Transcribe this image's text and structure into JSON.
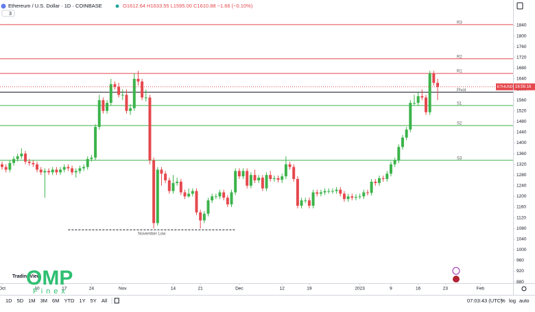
{
  "chart_data": {
    "type": "candlestick",
    "title": "Ethereum / U.S. Dollar · 1D · COINBASE",
    "ohlc_text": "O1612.64 H1633.55 L1595.00 C1610.88 −1.66 (−0.10%)",
    "indicator_count": "3",
    "up_color": "#3bb34a",
    "down_color": "#e5484d",
    "open": [
      1320,
      1310,
      1300,
      1325,
      1340,
      1350,
      1360,
      1330,
      1325,
      1320,
      1300,
      1290,
      1295,
      1290,
      1300,
      1290,
      1300,
      1310,
      1305,
      1290,
      1295,
      1305,
      1310,
      1340,
      1345,
      1460,
      1560,
      1520,
      1550,
      1620,
      1610,
      1580,
      1580,
      1520,
      1530,
      1640,
      1630,
      1570,
      1570,
      1335,
      1100,
      1300,
      1285,
      1260,
      1220,
      1250,
      1255,
      1215,
      1200,
      1210,
      1220,
      1140,
      1110,
      1135,
      1185,
      1200,
      1200,
      1215,
      1195,
      1170,
      1215,
      1295,
      1275,
      1295,
      1240,
      1280,
      1260,
      1270,
      1230,
      1280,
      1265,
      1268,
      1262,
      1275,
      1320,
      1310,
      1265,
      1165,
      1185,
      1185,
      1165,
      1215,
      1210,
      1215,
      1220,
      1220,
      1220,
      1225,
      1210,
      1190,
      1200,
      1195,
      1198,
      1200,
      1215,
      1213,
      1255,
      1250,
      1268,
      1265,
      1285,
      1320,
      1335,
      1385,
      1420,
      1450,
      1550,
      1550,
      1575,
      1570,
      1515,
      1660,
      1625
    ],
    "high": [
      1330,
      1320,
      1335,
      1350,
      1360,
      1380,
      1370,
      1340,
      1335,
      1330,
      1310,
      1305,
      1305,
      1310,
      1310,
      1310,
      1320,
      1320,
      1315,
      1305,
      1315,
      1320,
      1350,
      1355,
      1470,
      1580,
      1570,
      1560,
      1640,
      1630,
      1625,
      1600,
      1600,
      1545,
      1660,
      1670,
      1640,
      1600,
      1580,
      1345,
      1310,
      1310,
      1295,
      1270,
      1280,
      1270,
      1265,
      1225,
      1230,
      1230,
      1230,
      1150,
      1145,
      1195,
      1210,
      1210,
      1225,
      1225,
      1205,
      1225,
      1305,
      1305,
      1305,
      1305,
      1290,
      1300,
      1280,
      1280,
      1290,
      1295,
      1278,
      1278,
      1285,
      1350,
      1330,
      1320,
      1275,
      1195,
      1195,
      1195,
      1225,
      1225,
      1225,
      1230,
      1230,
      1230,
      1235,
      1235,
      1220,
      1210,
      1210,
      1208,
      1210,
      1225,
      1225,
      1265,
      1265,
      1278,
      1278,
      1295,
      1330,
      1345,
      1395,
      1430,
      1460,
      1560,
      1580,
      1590,
      1600,
      1580,
      1670,
      1670,
      1640
    ],
    "low": [
      1300,
      1290,
      1290,
      1315,
      1330,
      1340,
      1320,
      1315,
      1310,
      1290,
      1280,
      1195,
      1280,
      1280,
      1280,
      1280,
      1290,
      1295,
      1280,
      1270,
      1285,
      1295,
      1300,
      1330,
      1335,
      1450,
      1510,
      1510,
      1540,
      1600,
      1570,
      1560,
      1510,
      1505,
      1520,
      1615,
      1560,
      1555,
      1320,
      1080,
      1090,
      1240,
      1250,
      1210,
      1210,
      1240,
      1205,
      1190,
      1195,
      1200,
      1130,
      1080,
      1100,
      1125,
      1175,
      1190,
      1190,
      1185,
      1160,
      1160,
      1205,
      1265,
      1265,
      1230,
      1230,
      1250,
      1250,
      1220,
      1220,
      1255,
      1255,
      1252,
      1250,
      1265,
      1300,
      1255,
      1155,
      1155,
      1175,
      1155,
      1155,
      1200,
      1200,
      1205,
      1210,
      1210,
      1210,
      1200,
      1180,
      1180,
      1185,
      1185,
      1190,
      1190,
      1203,
      1203,
      1240,
      1240,
      1255,
      1255,
      1275,
      1310,
      1325,
      1375,
      1410,
      1440,
      1540,
      1540,
      1560,
      1505,
      1505,
      1615,
      1560
    ],
    "close": [
      1310,
      1300,
      1325,
      1340,
      1350,
      1360,
      1330,
      1325,
      1320,
      1300,
      1290,
      1295,
      1290,
      1300,
      1290,
      1300,
      1310,
      1305,
      1290,
      1295,
      1305,
      1310,
      1340,
      1345,
      1460,
      1560,
      1520,
      1550,
      1620,
      1610,
      1580,
      1580,
      1520,
      1530,
      1640,
      1630,
      1570,
      1570,
      1335,
      1100,
      1300,
      1285,
      1260,
      1220,
      1250,
      1255,
      1215,
      1200,
      1210,
      1220,
      1140,
      1110,
      1135,
      1185,
      1200,
      1200,
      1215,
      1195,
      1170,
      1215,
      1295,
      1275,
      1295,
      1240,
      1280,
      1260,
      1270,
      1230,
      1280,
      1265,
      1268,
      1262,
      1275,
      1320,
      1310,
      1265,
      1165,
      1185,
      1185,
      1165,
      1215,
      1210,
      1215,
      1220,
      1220,
      1220,
      1225,
      1210,
      1190,
      1200,
      1195,
      1198,
      1200,
      1215,
      1213,
      1255,
      1250,
      1268,
      1265,
      1285,
      1320,
      1335,
      1385,
      1420,
      1450,
      1550,
      1550,
      1575,
      1570,
      1515,
      1660,
      1625,
      1610
    ],
    "levels": [
      {
        "name": "R3",
        "value": 1843,
        "color": "#e5484d"
      },
      {
        "name": "R2",
        "value": 1715,
        "color": "#e5484d"
      },
      {
        "name": "R1",
        "value": 1660,
        "color": "#e5484d"
      },
      {
        "name": "Pivot",
        "value": 1590,
        "color": "#131722"
      },
      {
        "name": "S1",
        "value": 1540,
        "color": "#3bb34a"
      },
      {
        "name": "S2",
        "value": 1465,
        "color": "#3bb34a"
      },
      {
        "name": "S3",
        "value": 1335,
        "color": "#3bb34a"
      }
    ],
    "annotation": {
      "text": "November Low",
      "value": 1075,
      "x_start": 17,
      "x_end": 60
    },
    "price_tag": {
      "symbol": "ETHUSD",
      "timer": "16:56:16"
    },
    "xlim": [
      -0.53,
      131.4
    ],
    "ylim": [
      855,
      1935
    ],
    "yticks": [
      880,
      920,
      960,
      1000,
      1040,
      1080,
      1120,
      1160,
      1200,
      1240,
      1280,
      1320,
      1360,
      1400,
      1440,
      1480,
      1520,
      1560,
      1600,
      1640,
      1680,
      1720,
      1760,
      1800,
      1840
    ],
    "xticks": [
      {
        "value": 0,
        "label": "Oct"
      },
      {
        "value": 9,
        "label": "10"
      },
      {
        "value": 16,
        "label": "17"
      },
      {
        "value": 23,
        "label": "24"
      },
      {
        "value": 31,
        "label": "Nov"
      },
      {
        "value": 44,
        "label": "14"
      },
      {
        "value": 51,
        "label": "21"
      },
      {
        "value": 61,
        "label": "Dec"
      },
      {
        "value": 72,
        "label": "12"
      },
      {
        "value": 79,
        "label": "19"
      },
      {
        "value": 92,
        "label": "2023"
      },
      {
        "value": 100,
        "label": "9"
      },
      {
        "value": 107,
        "label": "16"
      },
      {
        "value": 114,
        "label": "23"
      },
      {
        "value": 123,
        "label": "Feb"
      }
    ],
    "toolbar": {
      "ranges": [
        "1D",
        "5D",
        "1M",
        "3M",
        "6M",
        "YTD",
        "1Y",
        "5Y",
        "All"
      ],
      "clock": "07:03:43 (UTC)",
      "percent": "%",
      "log": "log",
      "auto": "auto"
    },
    "brand": {
      "tradingview": "TradingView",
      "logo": "OMP",
      "logo_sub": "Finex"
    }
  }
}
